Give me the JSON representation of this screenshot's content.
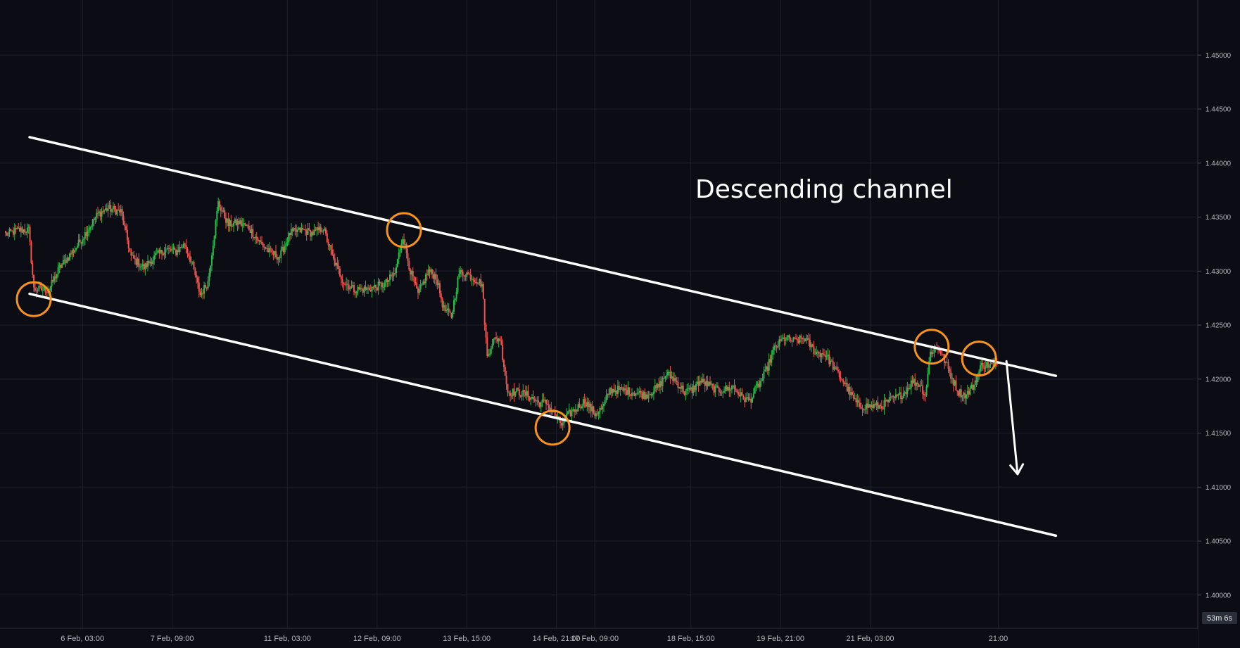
{
  "chart_data": {
    "type": "candlestick",
    "title": "",
    "xlabel": "",
    "ylabel": "",
    "ylim": [
      1.3951,
      1.4551
    ],
    "grid": true,
    "colors": {
      "background": "#0c0d14",
      "grid": "#1c1f2a",
      "up": "#26a69a",
      "up_bright": "#2bb84a",
      "down": "#ef5350",
      "channel_line": "#ffffff",
      "touch_circle": "#f7931a",
      "axis_text": "#b2b5be",
      "badge": "#2a2e39"
    },
    "y_ticks": [
      "1.45000",
      "1.44500",
      "1.44000",
      "1.43500",
      "1.43000",
      "1.42500",
      "1.42000",
      "1.41500",
      "1.41000",
      "1.40500",
      "1.40000"
    ],
    "x_ticks": [
      "6 Feb, 03:00",
      "7 Feb, 09:00",
      "11 Feb, 03:00",
      "12 Feb, 09:00",
      "13 Feb, 15:00",
      "14 Feb, 21:00",
      "17 Feb, 09:00",
      "18 Feb, 15:00",
      "19 Feb, 21:00",
      "21 Feb, 03:00",
      "21:00"
    ],
    "x_tick_index": [
      60,
      130,
      220,
      290,
      360,
      430,
      460,
      535,
      605,
      675,
      775
    ],
    "anchors": [
      [
        0,
        1.4334
      ],
      [
        10,
        1.4338
      ],
      [
        18,
        1.4338
      ],
      [
        22,
        1.4283
      ],
      [
        28,
        1.4283
      ],
      [
        34,
        1.4283
      ],
      [
        42,
        1.4303
      ],
      [
        55,
        1.4322
      ],
      [
        65,
        1.434
      ],
      [
        72,
        1.4353
      ],
      [
        80,
        1.4358
      ],
      [
        90,
        1.4355
      ],
      [
        98,
        1.4313
      ],
      [
        108,
        1.4303
      ],
      [
        116,
        1.4313
      ],
      [
        125,
        1.432
      ],
      [
        133,
        1.4318
      ],
      [
        140,
        1.4325
      ],
      [
        146,
        1.4305
      ],
      [
        152,
        1.4278
      ],
      [
        158,
        1.429
      ],
      [
        166,
        1.4363
      ],
      [
        174,
        1.4343
      ],
      [
        182,
        1.4345
      ],
      [
        190,
        1.434
      ],
      [
        198,
        1.4327
      ],
      [
        206,
        1.4318
      ],
      [
        214,
        1.4313
      ],
      [
        222,
        1.4335
      ],
      [
        232,
        1.4338
      ],
      [
        240,
        1.4335
      ],
      [
        248,
        1.434
      ],
      [
        256,
        1.431
      ],
      [
        264,
        1.429
      ],
      [
        272,
        1.4283
      ],
      [
        280,
        1.4283
      ],
      [
        288,
        1.4285
      ],
      [
        296,
        1.4288
      ],
      [
        304,
        1.4298
      ],
      [
        310,
        1.4333
      ],
      [
        316,
        1.43
      ],
      [
        322,
        1.4278
      ],
      [
        330,
        1.43
      ],
      [
        336,
        1.4295
      ],
      [
        342,
        1.4265
      ],
      [
        348,
        1.4258
      ],
      [
        354,
        1.4298
      ],
      [
        360,
        1.4298
      ],
      [
        366,
        1.4293
      ],
      [
        372,
        1.4288
      ],
      [
        376,
        1.422
      ],
      [
        380,
        1.4235
      ],
      [
        386,
        1.4238
      ],
      [
        392,
        1.4188
      ],
      [
        400,
        1.4188
      ],
      [
        408,
        1.4185
      ],
      [
        416,
        1.4178
      ],
      [
        422,
        1.4178
      ],
      [
        428,
        1.4168
      ],
      [
        434,
        1.4158
      ],
      [
        440,
        1.4168
      ],
      [
        446,
        1.4173
      ],
      [
        452,
        1.418
      ],
      [
        460,
        1.4168
      ],
      [
        466,
        1.4173
      ],
      [
        472,
        1.419
      ],
      [
        480,
        1.419
      ],
      [
        490,
        1.4188
      ],
      [
        500,
        1.4185
      ],
      [
        510,
        1.4193
      ],
      [
        516,
        1.4205
      ],
      [
        522,
        1.42
      ],
      [
        530,
        1.4188
      ],
      [
        536,
        1.419
      ],
      [
        542,
        1.4198
      ],
      [
        548,
        1.4195
      ],
      [
        555,
        1.419
      ],
      [
        562,
        1.419
      ],
      [
        568,
        1.4193
      ],
      [
        575,
        1.4183
      ],
      [
        581,
        1.418
      ],
      [
        587,
        1.4193
      ],
      [
        593,
        1.4205
      ],
      [
        600,
        1.4228
      ],
      [
        608,
        1.4238
      ],
      [
        616,
        1.4235
      ],
      [
        624,
        1.4238
      ],
      [
        632,
        1.4225
      ],
      [
        640,
        1.4223
      ],
      [
        648,
        1.4208
      ],
      [
        654,
        1.4198
      ],
      [
        660,
        1.4185
      ],
      [
        666,
        1.4175
      ],
      [
        672,
        1.4175
      ],
      [
        678,
        1.4175
      ],
      [
        684,
        1.4175
      ],
      [
        690,
        1.418
      ],
      [
        696,
        1.4183
      ],
      [
        702,
        1.4188
      ],
      [
        708,
        1.4198
      ],
      [
        714,
        1.4195
      ],
      [
        718,
        1.4185
      ],
      [
        722,
        1.4225
      ],
      [
        728,
        1.423
      ],
      [
        734,
        1.4215
      ],
      [
        740,
        1.4198
      ],
      [
        744,
        1.4188
      ],
      [
        750,
        1.4185
      ],
      [
        756,
        1.4195
      ],
      [
        762,
        1.4213
      ],
      [
        768,
        1.4213
      ],
      [
        774,
        1.4213
      ]
    ],
    "channel": {
      "upper": [
        [
          0,
          1.4424
        ],
        [
          820,
          1.4203
        ]
      ],
      "lower": [
        [
          0,
          1.4279
        ],
        [
          820,
          1.4055
        ]
      ]
    },
    "touches": [
      [
        22,
        1.4274
      ],
      [
        311,
        1.4338
      ],
      [
        427,
        1.4155
      ],
      [
        723,
        1.423
      ],
      [
        760,
        1.4219
      ]
    ],
    "arrow": {
      "from": [
        766,
        1.421
      ],
      "to": [
        778,
        1.4112
      ]
    },
    "annotation": "Descending channel",
    "countdown": "53m 6s"
  }
}
